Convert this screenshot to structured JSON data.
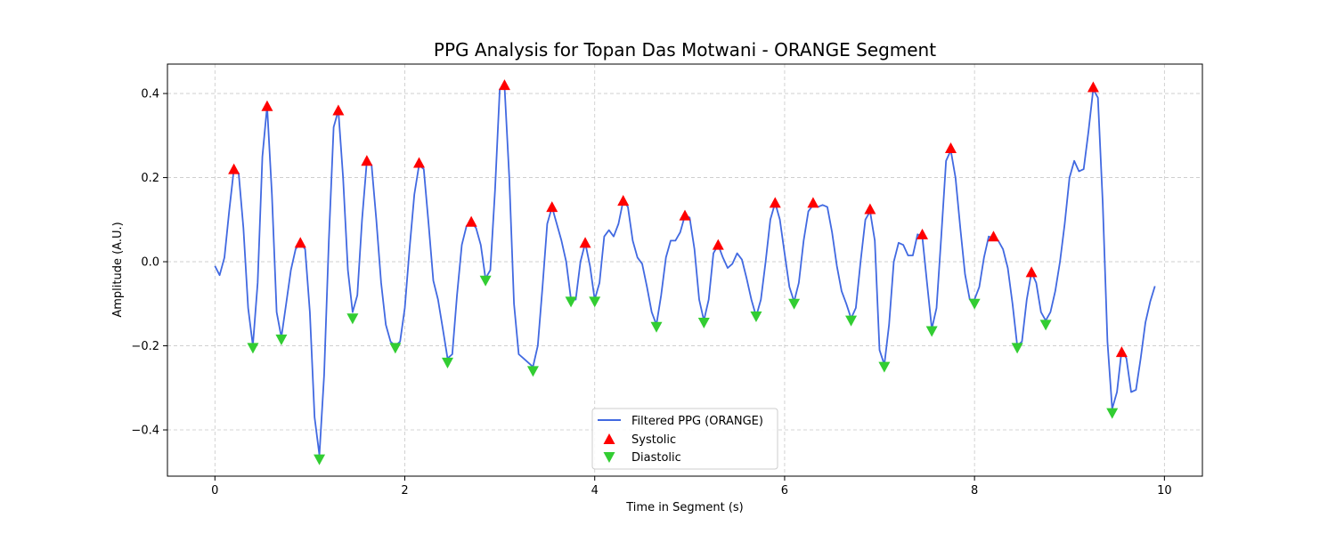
{
  "chart_data": {
    "type": "line",
    "title": "PPG Analysis for Topan Das Motwani - ORANGE Segment",
    "xlabel": "Time in Segment (s)",
    "ylabel": "Amplitude (A.U.)",
    "xlim": [
      -0.5,
      10.4
    ],
    "ylim": [
      -0.51,
      0.47
    ],
    "xticks": [
      0,
      2,
      4,
      6,
      8,
      10
    ],
    "yticks": [
      -0.4,
      -0.2,
      0.0,
      0.2,
      0.4
    ],
    "xtick_labels": [
      "0",
      "2",
      "4",
      "6",
      "8",
      "10"
    ],
    "ytick_labels": [
      "−0.4",
      "−0.2",
      "0.0",
      "0.2",
      "0.4"
    ],
    "grid": true,
    "legend_position": "bottom-center",
    "series": [
      {
        "name": "Filtered PPG (ORANGE)",
        "kind": "line",
        "color": "#4169e1",
        "points": [
          [
            0.0,
            -0.01
          ],
          [
            0.05,
            -0.032
          ],
          [
            0.1,
            0.01
          ],
          [
            0.15,
            0.12
          ],
          [
            0.2,
            0.22
          ],
          [
            0.25,
            0.21
          ],
          [
            0.3,
            0.08
          ],
          [
            0.35,
            -0.11
          ],
          [
            0.4,
            -0.2
          ],
          [
            0.45,
            -0.05
          ],
          [
            0.5,
            0.25
          ],
          [
            0.55,
            0.37
          ],
          [
            0.6,
            0.16
          ],
          [
            0.65,
            -0.12
          ],
          [
            0.7,
            -0.18
          ],
          [
            0.75,
            -0.1
          ],
          [
            0.8,
            -0.02
          ],
          [
            0.85,
            0.03
          ],
          [
            0.9,
            0.045
          ],
          [
            0.95,
            0.03
          ],
          [
            1.0,
            -0.12
          ],
          [
            1.05,
            -0.37
          ],
          [
            1.1,
            -0.46
          ],
          [
            1.15,
            -0.27
          ],
          [
            1.2,
            0.05
          ],
          [
            1.25,
            0.32
          ],
          [
            1.3,
            0.36
          ],
          [
            1.35,
            0.2
          ],
          [
            1.4,
            -0.02
          ],
          [
            1.45,
            -0.12
          ],
          [
            1.5,
            -0.08
          ],
          [
            1.55,
            0.1
          ],
          [
            1.6,
            0.24
          ],
          [
            1.65,
            0.23
          ],
          [
            1.7,
            0.1
          ],
          [
            1.75,
            -0.05
          ],
          [
            1.8,
            -0.15
          ],
          [
            1.85,
            -0.19
          ],
          [
            1.9,
            -0.2
          ],
          [
            1.95,
            -0.19
          ],
          [
            2.0,
            -0.11
          ],
          [
            2.05,
            0.03
          ],
          [
            2.1,
            0.16
          ],
          [
            2.15,
            0.23
          ],
          [
            2.2,
            0.22
          ],
          [
            2.25,
            0.09
          ],
          [
            2.3,
            -0.045
          ],
          [
            2.35,
            -0.09
          ],
          [
            2.4,
            -0.16
          ],
          [
            2.45,
            -0.23
          ],
          [
            2.5,
            -0.22
          ],
          [
            2.55,
            -0.08
          ],
          [
            2.6,
            0.04
          ],
          [
            2.65,
            0.085
          ],
          [
            2.7,
            0.095
          ],
          [
            2.75,
            0.08
          ],
          [
            2.8,
            0.04
          ],
          [
            2.85,
            -0.04
          ],
          [
            2.9,
            -0.02
          ],
          [
            2.95,
            0.17
          ],
          [
            3.0,
            0.41
          ],
          [
            3.05,
            0.42
          ],
          [
            3.1,
            0.2
          ],
          [
            3.15,
            -0.1
          ],
          [
            3.2,
            -0.22
          ],
          [
            3.25,
            -0.23
          ],
          [
            3.3,
            -0.24
          ],
          [
            3.35,
            -0.25
          ],
          [
            3.4,
            -0.2
          ],
          [
            3.45,
            -0.06
          ],
          [
            3.5,
            0.09
          ],
          [
            3.55,
            0.13
          ],
          [
            3.6,
            0.09
          ],
          [
            3.65,
            0.05
          ],
          [
            3.7,
            0.0
          ],
          [
            3.75,
            -0.09
          ],
          [
            3.8,
            -0.09
          ],
          [
            3.85,
            0.0
          ],
          [
            3.9,
            0.045
          ],
          [
            3.95,
            -0.01
          ],
          [
            4.0,
            -0.09
          ],
          [
            4.05,
            -0.05
          ],
          [
            4.1,
            0.06
          ],
          [
            4.15,
            0.075
          ],
          [
            4.2,
            0.06
          ],
          [
            4.25,
            0.09
          ],
          [
            4.3,
            0.145
          ],
          [
            4.35,
            0.13
          ],
          [
            4.4,
            0.05
          ],
          [
            4.45,
            0.01
          ],
          [
            4.5,
            -0.005
          ],
          [
            4.55,
            -0.06
          ],
          [
            4.6,
            -0.12
          ],
          [
            4.65,
            -0.15
          ],
          [
            4.7,
            -0.08
          ],
          [
            4.75,
            0.01
          ],
          [
            4.8,
            0.05
          ],
          [
            4.85,
            0.05
          ],
          [
            4.9,
            0.07
          ],
          [
            4.95,
            0.11
          ],
          [
            5.0,
            0.105
          ],
          [
            5.05,
            0.03
          ],
          [
            5.1,
            -0.09
          ],
          [
            5.15,
            -0.14
          ],
          [
            5.2,
            -0.09
          ],
          [
            5.25,
            0.02
          ],
          [
            5.3,
            0.04
          ],
          [
            5.35,
            0.01
          ],
          [
            5.4,
            -0.015
          ],
          [
            5.45,
            -0.005
          ],
          [
            5.5,
            0.02
          ],
          [
            5.55,
            0.005
          ],
          [
            5.6,
            -0.04
          ],
          [
            5.65,
            -0.09
          ],
          [
            5.7,
            -0.13
          ],
          [
            5.75,
            -0.09
          ],
          [
            5.8,
            0.0
          ],
          [
            5.85,
            0.1
          ],
          [
            5.9,
            0.14
          ],
          [
            5.95,
            0.1
          ],
          [
            6.0,
            0.02
          ],
          [
            6.05,
            -0.06
          ],
          [
            6.1,
            -0.095
          ],
          [
            6.15,
            -0.05
          ],
          [
            6.2,
            0.05
          ],
          [
            6.25,
            0.12
          ],
          [
            6.3,
            0.135
          ],
          [
            6.35,
            0.13
          ],
          [
            6.4,
            0.135
          ],
          [
            6.45,
            0.13
          ],
          [
            6.5,
            0.07
          ],
          [
            6.55,
            -0.01
          ],
          [
            6.6,
            -0.07
          ],
          [
            6.65,
            -0.1
          ],
          [
            6.7,
            -0.135
          ],
          [
            6.75,
            -0.11
          ],
          [
            6.8,
            0.0
          ],
          [
            6.85,
            0.1
          ],
          [
            6.9,
            0.12
          ],
          [
            6.95,
            0.05
          ],
          [
            7.0,
            -0.21
          ],
          [
            7.05,
            -0.245
          ],
          [
            7.1,
            -0.15
          ],
          [
            7.15,
            0.0
          ],
          [
            7.2,
            0.045
          ],
          [
            7.25,
            0.04
          ],
          [
            7.3,
            0.015
          ],
          [
            7.35,
            0.015
          ],
          [
            7.4,
            0.065
          ],
          [
            7.45,
            0.06
          ],
          [
            7.5,
            -0.05
          ],
          [
            7.55,
            -0.16
          ],
          [
            7.6,
            -0.11
          ],
          [
            7.65,
            0.06
          ],
          [
            7.7,
            0.24
          ],
          [
            7.75,
            0.265
          ],
          [
            7.8,
            0.2
          ],
          [
            7.85,
            0.08
          ],
          [
            7.9,
            -0.03
          ],
          [
            7.95,
            -0.09
          ],
          [
            8.0,
            -0.09
          ],
          [
            8.05,
            -0.06
          ],
          [
            8.1,
            0.01
          ],
          [
            8.15,
            0.06
          ],
          [
            8.2,
            0.055
          ],
          [
            8.25,
            0.05
          ],
          [
            8.3,
            0.03
          ],
          [
            8.35,
            -0.015
          ],
          [
            8.4,
            -0.1
          ],
          [
            8.45,
            -0.2
          ],
          [
            8.5,
            -0.19
          ],
          [
            8.55,
            -0.09
          ],
          [
            8.6,
            -0.025
          ],
          [
            8.65,
            -0.05
          ],
          [
            8.7,
            -0.12
          ],
          [
            8.75,
            -0.14
          ],
          [
            8.8,
            -0.12
          ],
          [
            8.85,
            -0.07
          ],
          [
            8.9,
            0.0
          ],
          [
            8.95,
            0.09
          ],
          [
            9.0,
            0.2
          ],
          [
            9.05,
            0.24
          ],
          [
            9.1,
            0.215
          ],
          [
            9.15,
            0.22
          ],
          [
            9.2,
            0.31
          ],
          [
            9.25,
            0.41
          ],
          [
            9.3,
            0.39
          ],
          [
            9.35,
            0.14
          ],
          [
            9.4,
            -0.19
          ],
          [
            9.45,
            -0.35
          ],
          [
            9.5,
            -0.31
          ],
          [
            9.55,
            -0.21
          ],
          [
            9.6,
            -0.23
          ],
          [
            9.65,
            -0.31
          ],
          [
            9.7,
            -0.305
          ],
          [
            9.75,
            -0.23
          ],
          [
            9.8,
            -0.145
          ],
          [
            9.85,
            -0.095
          ],
          [
            9.9,
            -0.058
          ]
        ]
      },
      {
        "name": "Systolic",
        "kind": "marker",
        "marker": "triangle-up",
        "color": "#ff0000",
        "points": [
          [
            0.2,
            0.22
          ],
          [
            0.55,
            0.37
          ],
          [
            0.9,
            0.045
          ],
          [
            1.3,
            0.36
          ],
          [
            1.6,
            0.24
          ],
          [
            2.15,
            0.235
          ],
          [
            2.7,
            0.095
          ],
          [
            3.05,
            0.42
          ],
          [
            3.55,
            0.13
          ],
          [
            3.9,
            0.045
          ],
          [
            4.3,
            0.145
          ],
          [
            4.95,
            0.11
          ],
          [
            5.3,
            0.04
          ],
          [
            5.9,
            0.14
          ],
          [
            6.3,
            0.14
          ],
          [
            6.9,
            0.125
          ],
          [
            7.45,
            0.065
          ],
          [
            7.75,
            0.27
          ],
          [
            8.2,
            0.06
          ],
          [
            8.6,
            -0.025
          ],
          [
            9.25,
            0.415
          ],
          [
            9.55,
            -0.215
          ]
        ]
      },
      {
        "name": "Diastolic",
        "kind": "marker",
        "marker": "triangle-down",
        "color": "#32cd32",
        "points": [
          [
            0.4,
            -0.205
          ],
          [
            0.7,
            -0.185
          ],
          [
            1.1,
            -0.47
          ],
          [
            1.45,
            -0.135
          ],
          [
            1.9,
            -0.205
          ],
          [
            2.45,
            -0.24
          ],
          [
            2.85,
            -0.045
          ],
          [
            3.35,
            -0.26
          ],
          [
            3.75,
            -0.095
          ],
          [
            4.0,
            -0.095
          ],
          [
            4.65,
            -0.155
          ],
          [
            5.15,
            -0.145
          ],
          [
            5.7,
            -0.13
          ],
          [
            6.1,
            -0.1
          ],
          [
            6.7,
            -0.14
          ],
          [
            7.05,
            -0.25
          ],
          [
            7.55,
            -0.165
          ],
          [
            8.0,
            -0.1
          ],
          [
            8.45,
            -0.205
          ],
          [
            8.75,
            -0.15
          ],
          [
            9.45,
            -0.36
          ]
        ]
      }
    ]
  }
}
